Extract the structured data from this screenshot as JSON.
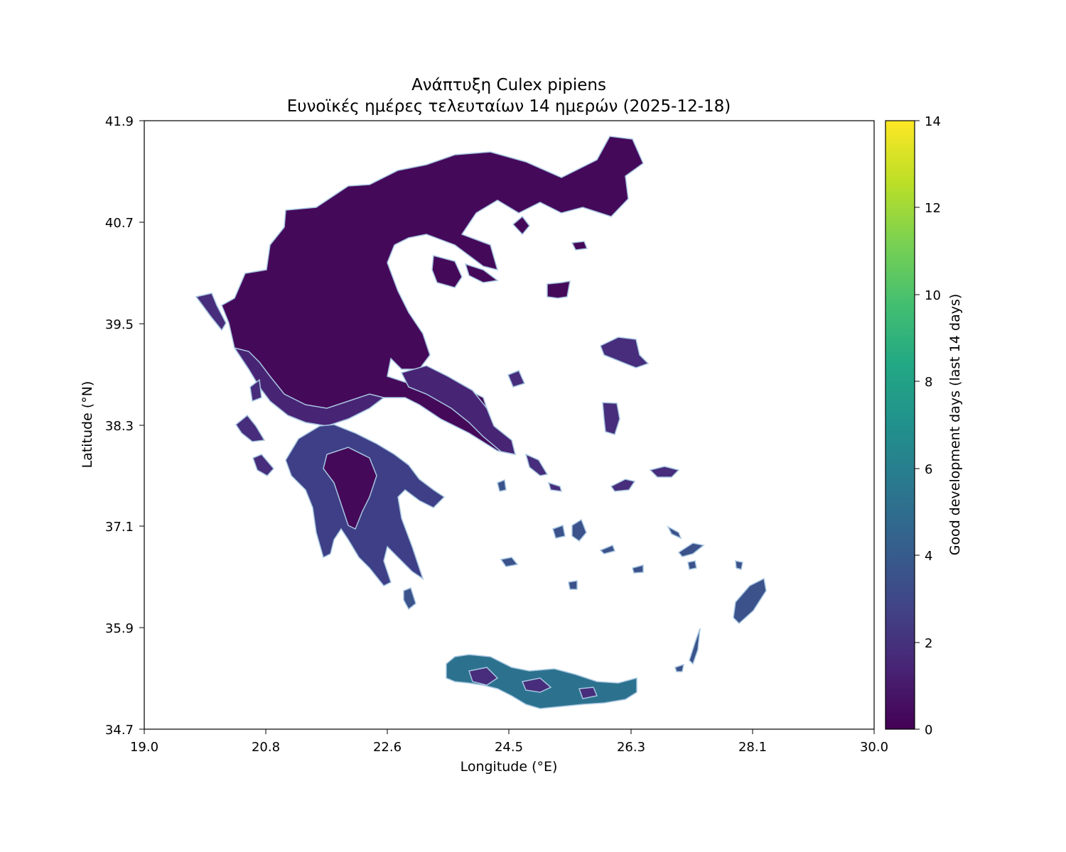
{
  "title": {
    "line1": "Ανάπτυξη Culex pipiens",
    "line2": "Ευνοϊκές ημέρες τελευταίων 14 ημερών (2025-12-18)"
  },
  "axes": {
    "xlabel": "Longitude (°E)",
    "ylabel": "Latitude (°N)",
    "xticks": [
      "19.0",
      "20.8",
      "22.6",
      "24.5",
      "26.3",
      "28.1",
      "30.0"
    ],
    "yticks": [
      "41.9",
      "40.7",
      "39.5",
      "38.3",
      "37.1",
      "35.9",
      "34.7"
    ]
  },
  "colorbar": {
    "label": "Good development days (last 14 days)",
    "ticks": [
      "14",
      "12",
      "10",
      "8",
      "6",
      "4",
      "2",
      "0"
    ],
    "colormap": "viridis",
    "range": [
      0,
      14
    ]
  },
  "chart_data": {
    "type": "heatmap",
    "title": "Ανάπτυξη Culex pipiens / Ευνοϊκές ημέρες τελευταίων 14 ημερών (2025-12-18)",
    "xlabel": "Longitude (°E)",
    "ylabel": "Latitude (°N)",
    "xlim": [
      19.0,
      30.0
    ],
    "ylim": [
      34.7,
      41.9
    ],
    "value_range": [
      0,
      14
    ],
    "regions": [
      {
        "name": "northern mainland",
        "approx_value": 0.5
      },
      {
        "name": "central mainland",
        "approx_value": 1
      },
      {
        "name": "Peloponnese",
        "approx_value": 2.5
      },
      {
        "name": "Aegean islands",
        "approx_value": 2
      },
      {
        "name": "Rhodes",
        "approx_value": 3
      },
      {
        "name": "Crete",
        "approx_value": 4.5
      }
    ]
  },
  "colors": {
    "viridis_0": "#440154",
    "viridis_2": "#472d7b",
    "viridis_4": "#3b528b",
    "viridis_6": "#2c728e",
    "viridis_8": "#21918c",
    "viridis_10": "#28ae80",
    "viridis_12": "#5ec962",
    "viridis_14": "#fde725",
    "coast": "#a7c6e0"
  }
}
